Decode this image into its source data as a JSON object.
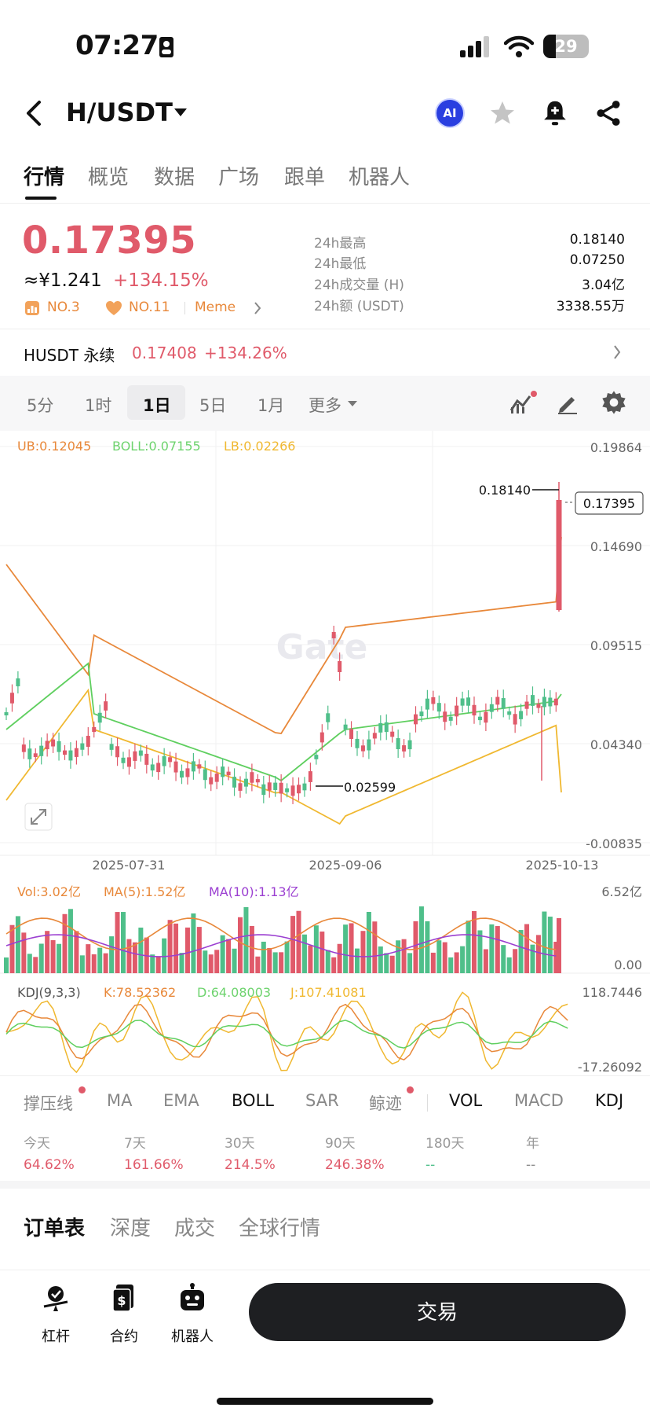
{
  "status_bar": {
    "time": "07:27",
    "battery": "29"
  },
  "header": {
    "pair": "H/USDT",
    "ai_badge": "AI"
  },
  "tabs": [
    "行情",
    "概览",
    "数据",
    "广场",
    "跟单",
    "机器人"
  ],
  "price": {
    "last": "0.17395",
    "cny": "≈¥1.241",
    "change_pct": "+134.15%",
    "ranks": [
      "NO.3",
      "NO.11",
      "Meme"
    ]
  },
  "stats": [
    {
      "label": "24h最高",
      "value": "0.18140"
    },
    {
      "label": "24h最低",
      "value": "0.07250"
    },
    {
      "label": "24h成交量 (H)",
      "value": "3.04亿"
    },
    {
      "label": "24h额 (USDT)",
      "value": "3338.55万"
    }
  ],
  "perpetual": {
    "name": "HUSDT 永续",
    "price": "0.17408",
    "change_pct": "+134.26%"
  },
  "intervals": [
    "5分",
    "1时",
    "1日",
    "5日",
    "1月",
    "更多"
  ],
  "active_interval": "1日",
  "chart": {
    "boll_legend": {
      "ub": "UB:0.12045",
      "boll": "BOLL:0.07155",
      "lb": "LB:0.02266"
    },
    "price_axis": [
      "0.19864",
      "0.14690",
      "0.09515",
      "0.04340",
      "-0.00835"
    ],
    "current_price_tag": "0.17395",
    "high_marker": "0.18140",
    "low_marker": "0.02599",
    "watermark": "Gate",
    "date_axis": [
      "2025-07-31",
      "2025-09-06",
      "2025-10-13"
    ],
    "vol_legend": {
      "vol": "Vol:3.02亿",
      "ma5": "MA(5):1.52亿",
      "ma10": "MA(10):1.13亿"
    },
    "vol_axis": [
      "6.52亿",
      "0.00"
    ],
    "kdj_legend": {
      "name": "KDJ(9,3,3)",
      "k": "K:78.52362",
      "d": "D:64.08003",
      "j": "J:107.41081"
    },
    "kdj_axis": [
      "118.7446",
      "-17.26092"
    ],
    "colors": {
      "up": "#e05a6a",
      "down": "#4fbf8a",
      "ub": "#e8883a",
      "boll": "#5fcf5f",
      "lb": "#f0b830"
    }
  },
  "indicator_tabs": [
    "撑压线",
    "MA",
    "EMA",
    "BOLL",
    "SAR",
    "鲸迹",
    "VOL",
    "MACD",
    "KDJ"
  ],
  "performance": [
    {
      "label": "今天",
      "value": "64.62%"
    },
    {
      "label": "7天",
      "value": "161.66%"
    },
    {
      "label": "30天",
      "value": "214.5%"
    },
    {
      "label": "90天",
      "value": "246.38%"
    },
    {
      "label": "180天",
      "value": "--"
    },
    {
      "label": "年",
      "value": "--"
    }
  ],
  "order_tabs": [
    "订单表",
    "深度",
    "成交",
    "全球行情"
  ],
  "bottom_nav": [
    "杠杆",
    "合约",
    "机器人"
  ],
  "trade_button": "交易"
}
